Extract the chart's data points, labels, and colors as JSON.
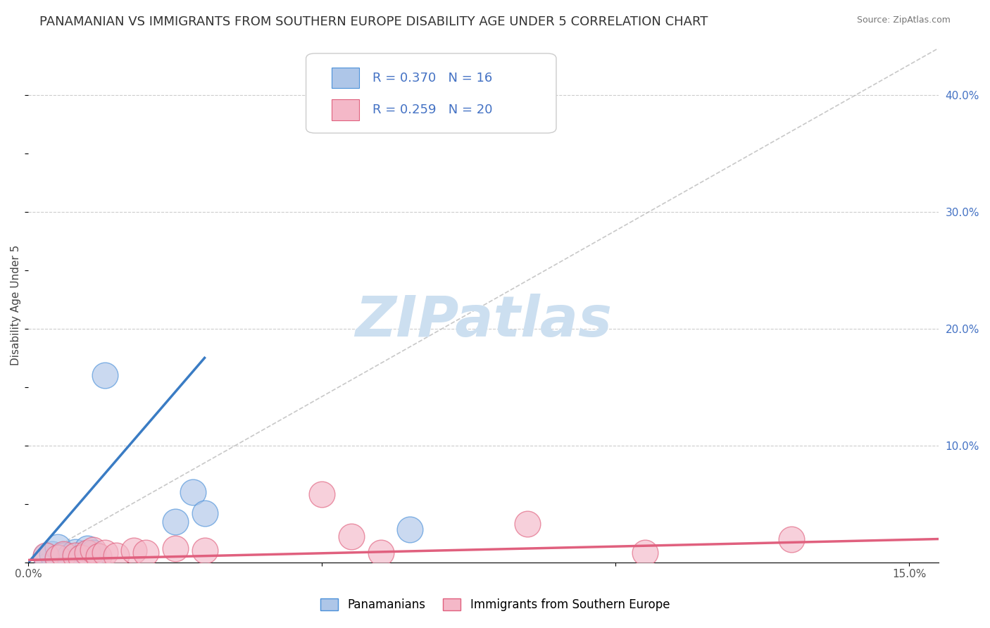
{
  "title": "PANAMANIAN VS IMMIGRANTS FROM SOUTHERN EUROPE DISABILITY AGE UNDER 5 CORRELATION CHART",
  "source": "Source: ZipAtlas.com",
  "ylabel": "Disability Age Under 5",
  "xlim": [
    0.0,
    0.155
  ],
  "ylim": [
    0.0,
    0.44
  ],
  "xticks": [
    0.0,
    0.05,
    0.1,
    0.15
  ],
  "xtick_labels": [
    "0.0%",
    "",
    "",
    "15.0%"
  ],
  "yticks_right": [
    0.1,
    0.2,
    0.3,
    0.4
  ],
  "title_fontsize": 13,
  "label_fontsize": 11,
  "tick_fontsize": 11,
  "blue_color": "#aec6e8",
  "blue_edge_color": "#4a90d9",
  "pink_color": "#f4b8c8",
  "pink_edge_color": "#e0607e",
  "blue_line_color": "#3a7cc4",
  "pink_line_color": "#e0607e",
  "ref_line_color": "#bbbbbb",
  "grid_color": "#cccccc",
  "background_color": "#ffffff",
  "watermark": "ZIPatlas",
  "watermark_color": "#ccdff0",
  "legend_label1": "Panamanians",
  "legend_label2": "Immigrants from Southern Europe",
  "blue_scatter_x": [
    0.003,
    0.004,
    0.005,
    0.005,
    0.006,
    0.007,
    0.008,
    0.009,
    0.01,
    0.01,
    0.011,
    0.013,
    0.025,
    0.028,
    0.03,
    0.065
  ],
  "blue_scatter_y": [
    0.005,
    0.007,
    0.003,
    0.013,
    0.006,
    0.005,
    0.009,
    0.004,
    0.007,
    0.012,
    0.008,
    0.16,
    0.035,
    0.06,
    0.042,
    0.028
  ],
  "pink_scatter_x": [
    0.003,
    0.005,
    0.006,
    0.008,
    0.009,
    0.01,
    0.011,
    0.012,
    0.013,
    0.015,
    0.018,
    0.02,
    0.025,
    0.03,
    0.05,
    0.055,
    0.06,
    0.085,
    0.105,
    0.13
  ],
  "pink_scatter_y": [
    0.006,
    0.004,
    0.007,
    0.006,
    0.004,
    0.008,
    0.011,
    0.005,
    0.008,
    0.006,
    0.01,
    0.008,
    0.012,
    0.01,
    0.058,
    0.022,
    0.008,
    0.033,
    0.008,
    0.02
  ],
  "blue_line_x": [
    0.0,
    0.03
  ],
  "blue_line_y": [
    0.0,
    0.175
  ],
  "pink_line_x": [
    0.0,
    0.155
  ],
  "pink_line_y": [
    0.002,
    0.02
  ],
  "ref_line_x": [
    0.0,
    0.155
  ],
  "ref_line_y": [
    0.0,
    0.44
  ]
}
